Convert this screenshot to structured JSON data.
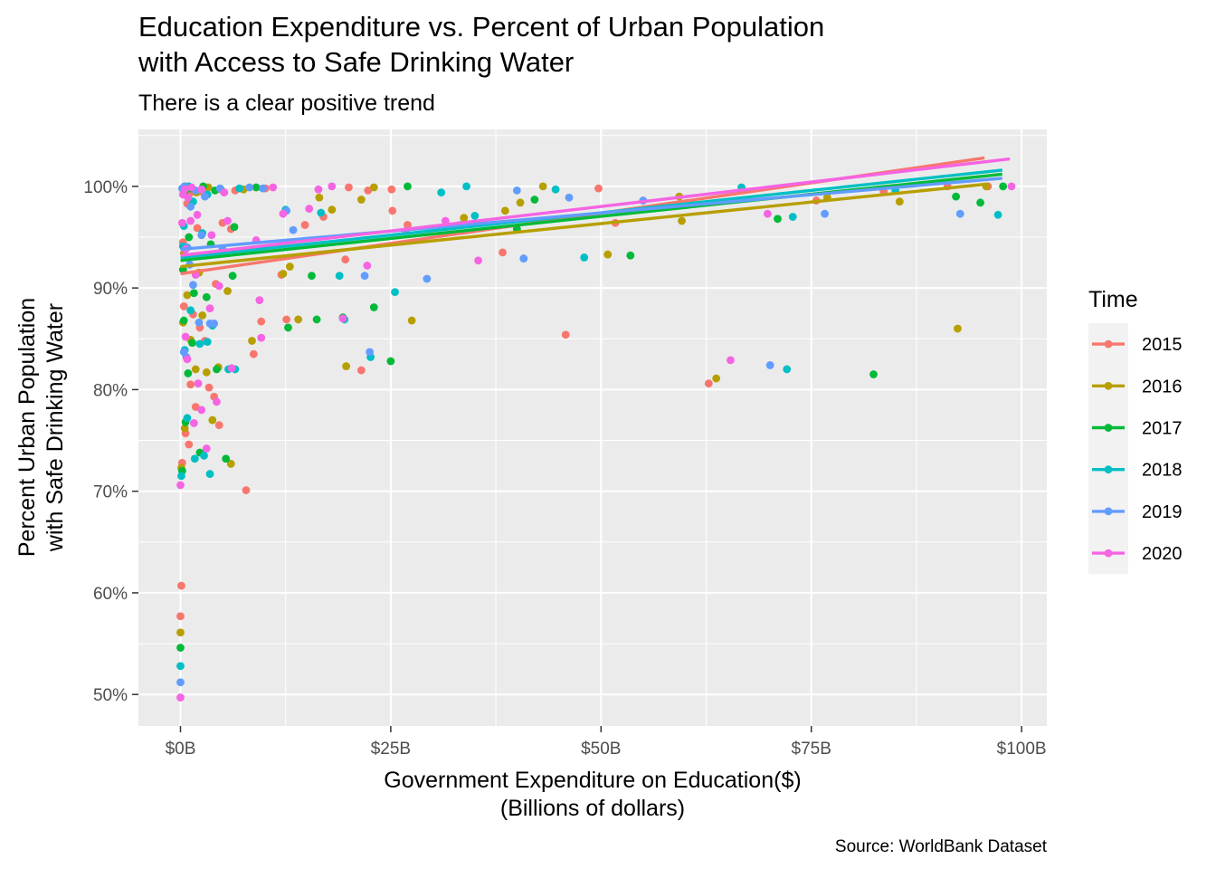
{
  "chart_data": {
    "type": "scatter",
    "title_line1": "Education Expenditure vs. Percent of Urban Population",
    "title_line2": "with Access to Safe Drinking Water",
    "subtitle": "There is a clear positive trend",
    "xlabel_line1": "Government Expenditure on Education($)",
    "xlabel_line2": "(Billions of dollars)",
    "ylabel_line1": "Percent Urban Population",
    "ylabel_line2": "with Safe Drinking Water",
    "caption": "Source: WorldBank Dataset",
    "xlim": [
      -5,
      103
    ],
    "ylim": [
      46.9,
      105.6
    ],
    "x_ticks": [
      0,
      25,
      50,
      75,
      100
    ],
    "x_tick_labels": [
      "$0B",
      "$25B",
      "$50B",
      "$75B",
      "$100B"
    ],
    "y_ticks": [
      50,
      60,
      70,
      80,
      90,
      100
    ],
    "y_tick_labels": [
      "50%",
      "60%",
      "70%",
      "80%",
      "90%",
      "100%"
    ],
    "grid": true,
    "legend": {
      "title": "Time",
      "position": "right"
    },
    "series": [
      {
        "name": "2015",
        "color": "#F8766D",
        "trend": {
          "x": [
            0,
            95.6
          ],
          "y": [
            91.4,
            102.8
          ]
        },
        "points": [
          [
            0.0,
            57.7
          ],
          [
            0.1,
            60.7
          ],
          [
            0.2,
            72.8
          ],
          [
            0.4,
            88.2
          ],
          [
            0.6,
            75.7
          ],
          [
            1.0,
            74.6
          ],
          [
            1.2,
            80.5
          ],
          [
            1.5,
            87.4
          ],
          [
            1.8,
            78.3
          ],
          [
            2.3,
            86.1
          ],
          [
            2.9,
            84.8
          ],
          [
            3.4,
            80.2
          ],
          [
            4.0,
            79.3
          ],
          [
            4.6,
            76.5
          ],
          [
            4.2,
            90.4
          ],
          [
            5.0,
            96.4
          ],
          [
            6.0,
            95.8
          ],
          [
            7.8,
            70.1
          ],
          [
            8.7,
            83.5
          ],
          [
            9.6,
            86.7
          ],
          [
            12.0,
            91.3
          ],
          [
            12.6,
            86.9
          ],
          [
            14.8,
            96.2
          ],
          [
            17.0,
            97.0
          ],
          [
            19.6,
            92.8
          ],
          [
            21.5,
            81.9
          ],
          [
            22.3,
            99.6
          ],
          [
            25.1,
            99.7
          ],
          [
            25.2,
            97.6
          ],
          [
            27.0,
            96.2
          ],
          [
            38.3,
            93.5
          ],
          [
            45.8,
            85.4
          ],
          [
            49.7,
            99.8
          ],
          [
            51.7,
            96.4
          ],
          [
            60.6,
            98.3
          ],
          [
            62.8,
            80.6
          ],
          [
            75.6,
            98.6
          ],
          [
            83.6,
            99.5
          ],
          [
            91.2,
            100.0
          ],
          [
            96.0,
            100.0
          ],
          [
            1.5,
            99.7
          ],
          [
            3.0,
            99.9
          ],
          [
            6.5,
            99.6
          ],
          [
            10.1,
            99.8
          ],
          [
            20.0,
            99.9
          ],
          [
            0.3,
            94.5
          ],
          [
            0.8,
            98.3
          ],
          [
            2.0,
            95.9
          ],
          [
            0.5,
            100.0
          ],
          [
            1.1,
            99.3
          ],
          [
            2.5,
            99.5
          ]
        ]
      },
      {
        "name": "2016",
        "color": "#B79F00",
        "trend": {
          "x": [
            0,
            95.6
          ],
          "y": [
            92.1,
            100.2
          ]
        },
        "points": [
          [
            0.0,
            56.1
          ],
          [
            0.1,
            72.3
          ],
          [
            0.3,
            86.6
          ],
          [
            0.5,
            76.2
          ],
          [
            0.8,
            89.3
          ],
          [
            1.2,
            84.9
          ],
          [
            1.8,
            82.0
          ],
          [
            2.6,
            87.3
          ],
          [
            3.1,
            81.7
          ],
          [
            3.8,
            77.0
          ],
          [
            4.5,
            82.2
          ],
          [
            5.6,
            89.7
          ],
          [
            6.0,
            72.7
          ],
          [
            8.5,
            84.8
          ],
          [
            12.2,
            91.4
          ],
          [
            14.0,
            86.9
          ],
          [
            13.0,
            92.1
          ],
          [
            16.5,
            98.9
          ],
          [
            18.0,
            97.7
          ],
          [
            19.7,
            82.3
          ],
          [
            21.5,
            98.7
          ],
          [
            27.5,
            86.8
          ],
          [
            33.7,
            96.9
          ],
          [
            38.6,
            97.6
          ],
          [
            40.4,
            98.4
          ],
          [
            43.1,
            100.0
          ],
          [
            50.8,
            93.3
          ],
          [
            59.3,
            99.0
          ],
          [
            59.6,
            96.6
          ],
          [
            63.7,
            81.1
          ],
          [
            76.9,
            98.9
          ],
          [
            85.5,
            98.5
          ],
          [
            92.4,
            86.0
          ],
          [
            95.8,
            100.0
          ],
          [
            1.0,
            99.8
          ],
          [
            3.3,
            99.9
          ],
          [
            7.5,
            99.7
          ],
          [
            23.0,
            99.9
          ],
          [
            0.6,
            100.0
          ],
          [
            1.9,
            99.4
          ],
          [
            0.4,
            93.4
          ],
          [
            2.2,
            91.5
          ],
          [
            4.8,
            99.7
          ]
        ]
      },
      {
        "name": "2017",
        "color": "#00BA38",
        "trend": {
          "x": [
            0,
            97.7
          ],
          "y": [
            92.7,
            101.2
          ]
        },
        "points": [
          [
            0.0,
            54.6
          ],
          [
            0.2,
            72.0
          ],
          [
            0.4,
            86.8
          ],
          [
            0.6,
            76.8
          ],
          [
            0.9,
            81.6
          ],
          [
            1.4,
            84.6
          ],
          [
            1.6,
            89.5
          ],
          [
            2.3,
            73.8
          ],
          [
            3.1,
            89.1
          ],
          [
            4.3,
            82.0
          ],
          [
            5.4,
            73.2
          ],
          [
            6.2,
            91.2
          ],
          [
            6.4,
            96.0
          ],
          [
            12.8,
            86.1
          ],
          [
            15.6,
            91.2
          ],
          [
            16.2,
            86.9
          ],
          [
            19.3,
            87.1
          ],
          [
            23.0,
            88.1
          ],
          [
            25.0,
            82.8
          ],
          [
            33.3,
            96.2
          ],
          [
            40.0,
            95.8
          ],
          [
            42.1,
            98.7
          ],
          [
            53.5,
            93.2
          ],
          [
            71.0,
            96.8
          ],
          [
            82.4,
            81.5
          ],
          [
            92.2,
            99.0
          ],
          [
            95.1,
            98.4
          ],
          [
            97.8,
            100.0
          ],
          [
            1.3,
            99.8
          ],
          [
            4.1,
            99.6
          ],
          [
            9.0,
            99.9
          ],
          [
            27.0,
            100.0
          ],
          [
            0.5,
            99.5
          ],
          [
            2.7,
            100.0
          ],
          [
            0.3,
            91.8
          ],
          [
            1.0,
            95.0
          ],
          [
            3.6,
            94.3
          ]
        ]
      },
      {
        "name": "2018",
        "color": "#00BFC4",
        "trend": {
          "x": [
            0,
            97.7
          ],
          "y": [
            93.0,
            101.6
          ]
        },
        "points": [
          [
            0.0,
            52.8
          ],
          [
            0.1,
            71.5
          ],
          [
            0.3,
            94.1
          ],
          [
            0.5,
            83.9
          ],
          [
            0.8,
            77.2
          ],
          [
            1.2,
            87.8
          ],
          [
            1.7,
            73.2
          ],
          [
            2.3,
            84.5
          ],
          [
            2.8,
            73.5
          ],
          [
            3.2,
            84.7
          ],
          [
            3.5,
            71.7
          ],
          [
            3.8,
            86.3
          ],
          [
            5.7,
            82.0
          ],
          [
            6.5,
            82.0
          ],
          [
            12.5,
            97.7
          ],
          [
            16.7,
            97.4
          ],
          [
            18.9,
            91.2
          ],
          [
            19.5,
            86.9
          ],
          [
            22.6,
            83.2
          ],
          [
            25.5,
            89.6
          ],
          [
            31.0,
            99.4
          ],
          [
            35.0,
            97.1
          ],
          [
            44.6,
            99.7
          ],
          [
            48.0,
            93.0
          ],
          [
            66.7,
            99.9
          ],
          [
            72.1,
            82.0
          ],
          [
            72.8,
            97.0
          ],
          [
            85.0,
            99.6
          ],
          [
            97.2,
            97.2
          ],
          [
            1.0,
            100.0
          ],
          [
            3.2,
            99.2
          ],
          [
            7.0,
            99.8
          ],
          [
            34.0,
            100.0
          ],
          [
            0.4,
            96.1
          ],
          [
            1.5,
            98.5
          ],
          [
            2.6,
            95.4
          ]
        ]
      },
      {
        "name": "2019",
        "color": "#619CFF",
        "trend": {
          "x": [
            0,
            97.7
          ],
          "y": [
            93.8,
            100.8
          ]
        },
        "points": [
          [
            0.0,
            51.2
          ],
          [
            0.2,
            99.8
          ],
          [
            0.4,
            83.7
          ],
          [
            0.7,
            83.2
          ],
          [
            1.1,
            92.3
          ],
          [
            1.5,
            90.3
          ],
          [
            2.2,
            86.6
          ],
          [
            2.5,
            95.2
          ],
          [
            3.5,
            86.5
          ],
          [
            4.0,
            86.5
          ],
          [
            5.0,
            93.8
          ],
          [
            9.8,
            99.8
          ],
          [
            12.6,
            97.6
          ],
          [
            13.4,
            95.7
          ],
          [
            21.9,
            91.2
          ],
          [
            22.5,
            83.7
          ],
          [
            29.3,
            90.9
          ],
          [
            40.8,
            92.9
          ],
          [
            46.2,
            98.9
          ],
          [
            55.0,
            98.6
          ],
          [
            70.1,
            82.4
          ],
          [
            76.6,
            97.3
          ],
          [
            92.7,
            97.3
          ],
          [
            1.8,
            99.6
          ],
          [
            4.7,
            99.8
          ],
          [
            8.2,
            99.9
          ],
          [
            40.0,
            99.6
          ],
          [
            0.5,
            100.0
          ],
          [
            1.2,
            98.0
          ],
          [
            2.9,
            99.0
          ],
          [
            0.8,
            94.0
          ]
        ]
      },
      {
        "name": "2020",
        "color": "#F564E3",
        "trend": {
          "x": [
            0,
            98.6
          ],
          "y": [
            93.2,
            102.7
          ]
        },
        "points": [
          [
            0.0,
            49.7
          ],
          [
            0.0,
            70.6
          ],
          [
            0.2,
            96.4
          ],
          [
            0.6,
            85.2
          ],
          [
            0.8,
            83.0
          ],
          [
            1.2,
            96.6
          ],
          [
            1.6,
            76.7
          ],
          [
            2.1,
            80.6
          ],
          [
            2.5,
            78.0
          ],
          [
            3.1,
            74.2
          ],
          [
            3.5,
            88.0
          ],
          [
            4.3,
            78.8
          ],
          [
            4.6,
            90.2
          ],
          [
            5.6,
            96.6
          ],
          [
            6.1,
            82.1
          ],
          [
            9.0,
            94.7
          ],
          [
            9.4,
            88.8
          ],
          [
            9.6,
            85.1
          ],
          [
            12.2,
            97.3
          ],
          [
            15.3,
            97.8
          ],
          [
            16.4,
            99.7
          ],
          [
            19.3,
            87.0
          ],
          [
            22.2,
            92.2
          ],
          [
            26.8,
            95.6
          ],
          [
            31.5,
            96.6
          ],
          [
            35.4,
            92.7
          ],
          [
            65.4,
            82.9
          ],
          [
            69.8,
            97.3
          ],
          [
            98.8,
            100.0
          ],
          [
            0.5,
            99.7
          ],
          [
            1.3,
            99.9
          ],
          [
            2.5,
            99.7
          ],
          [
            5.2,
            99.4
          ],
          [
            11.0,
            99.9
          ],
          [
            18.0,
            100.0
          ],
          [
            0.3,
            99.2
          ],
          [
            0.9,
            98.9
          ],
          [
            2.0,
            97.2
          ],
          [
            3.7,
            95.2
          ],
          [
            0.6,
            93.8
          ],
          [
            1.8,
            91.3
          ]
        ]
      }
    ]
  }
}
